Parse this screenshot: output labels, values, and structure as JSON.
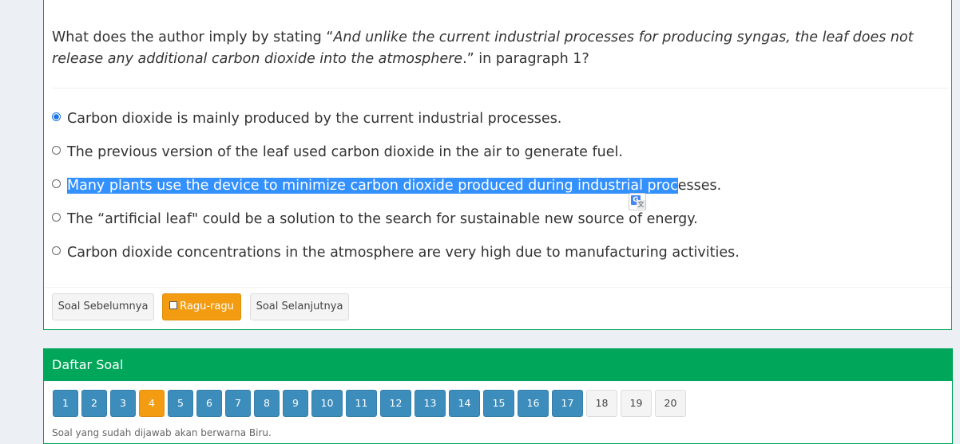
{
  "question": {
    "prefix": "What does the author imply by stating “",
    "quote": "And unlike the current industrial processes for producing syngas, the leaf does not release any additional carbon dioxide into the atmosphere",
    "suffix": ".” in paragraph 1?"
  },
  "options": [
    {
      "text": "Carbon dioxide is mainly produced by the current industrial processes.",
      "selected": true
    },
    {
      "text": "The previous version of the leaf used carbon dioxide in the air to generate fuel.",
      "selected": false
    },
    {
      "text_highlighted": "Many plants use the device to minimize carbon dioxide produced during industrial proc",
      "text_rest": "esses.",
      "selected": false
    },
    {
      "text": "The “artificial leaf\" could be a solution to the search for sustainable new source of energy.",
      "selected": false
    },
    {
      "text": "Carbon dioxide concentrations in the atmosphere are very high due to manufacturing activities.",
      "selected": false
    }
  ],
  "translate_icon": {
    "glyph_g": "G",
    "glyph_t": "文"
  },
  "buttons": {
    "prev": "Soal Sebelumnya",
    "ragu": "Ragu-ragu",
    "next": "Soal Selanjutnya"
  },
  "question_list": {
    "title": "Daftar Soal",
    "numbers": [
      {
        "label": "1",
        "state": "answered"
      },
      {
        "label": "2",
        "state": "answered"
      },
      {
        "label": "3",
        "state": "answered"
      },
      {
        "label": "4",
        "state": "current"
      },
      {
        "label": "5",
        "state": "answered"
      },
      {
        "label": "6",
        "state": "answered"
      },
      {
        "label": "7",
        "state": "answered"
      },
      {
        "label": "8",
        "state": "answered"
      },
      {
        "label": "9",
        "state": "answered"
      },
      {
        "label": "10",
        "state": "answered"
      },
      {
        "label": "11",
        "state": "answered"
      },
      {
        "label": "12",
        "state": "answered"
      },
      {
        "label": "13",
        "state": "answered"
      },
      {
        "label": "14",
        "state": "answered"
      },
      {
        "label": "15",
        "state": "answered"
      },
      {
        "label": "16",
        "state": "answered"
      },
      {
        "label": "17",
        "state": "answered"
      },
      {
        "label": "18",
        "state": "unanswered"
      },
      {
        "label": "19",
        "state": "unanswered"
      },
      {
        "label": "20",
        "state": "unanswered"
      }
    ],
    "footnote": "Soal yang sudah dijawab akan berwarna Biru."
  },
  "colors": {
    "green": "#00a65a",
    "blue": "#3c8dbc",
    "orange": "#f39c12",
    "selection": "#3390ff"
  }
}
